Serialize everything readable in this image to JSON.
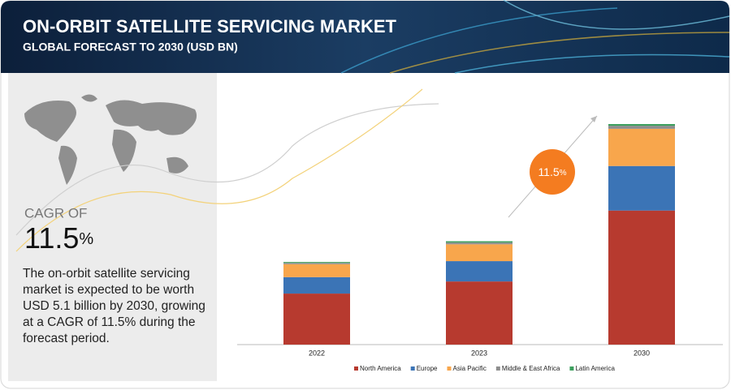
{
  "header": {
    "title": "ON-ORBIT SATELLITE SERVICING MARKET",
    "subtitle": "GLOBAL FORECAST TO 2030 (USD BN)"
  },
  "side": {
    "cagr_label": "CAGR OF",
    "cagr_value": "11.5",
    "cagr_unit": "%",
    "description": "The on-orbit satellite servicing market is expected to be worth USD 5.1 billion by 2030, growing at a CAGR of 11.5% during the forecast period."
  },
  "chart_data": {
    "type": "stacked_bar",
    "annotation": {
      "value": "11.5",
      "unit": "%"
    },
    "categories": [
      "2022",
      "2023",
      "2030"
    ],
    "series": [
      {
        "name": "North America",
        "color": "#b73a2f",
        "values": [
          1.18,
          1.46,
          3.1
        ]
      },
      {
        "name": "Europe",
        "color": "#3b74b6",
        "values": [
          0.38,
          0.47,
          1.03
        ]
      },
      {
        "name": "Asia Pacific",
        "color": "#f8a64c",
        "values": [
          0.3,
          0.39,
          0.86
        ]
      },
      {
        "name": "Middle & East Africa",
        "color": "#8e8e8e",
        "values": [
          0.03,
          0.04,
          0.07
        ]
      },
      {
        "name": "Latin America",
        "color": "#3c9f5e",
        "values": [
          0.02,
          0.03,
          0.04
        ]
      }
    ]
  }
}
